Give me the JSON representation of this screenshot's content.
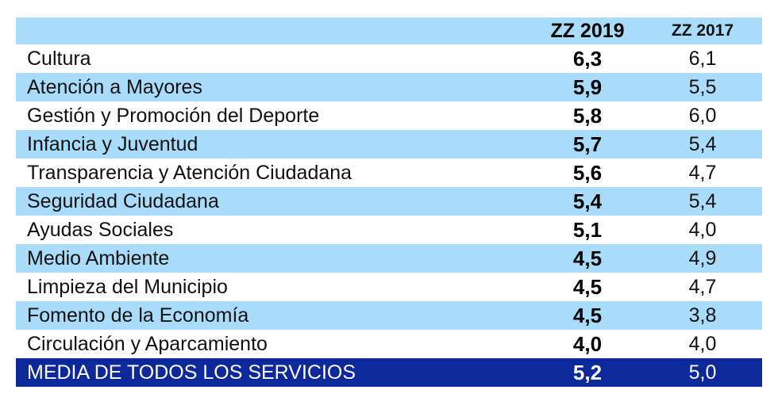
{
  "colors": {
    "stripe": "#a9dcfa",
    "dark": "#0d2898",
    "text": "#111111"
  },
  "header": {
    "label": "",
    "col_a": "ZZ 2019",
    "col_b": "ZZ 2017"
  },
  "chart_data": {
    "type": "table",
    "columns": [
      "ZZ 2019",
      "ZZ 2017"
    ],
    "rows": [
      {
        "label": "Cultura",
        "a": "6,3",
        "b": "6,1"
      },
      {
        "label": "Atención a Mayores",
        "a": "5,9",
        "b": "5,5"
      },
      {
        "label": "Gestión y Promoción del Deporte",
        "a": "5,8",
        "b": "6,0"
      },
      {
        "label": "Infancia y Juventud",
        "a": "5,7",
        "b": "5,4"
      },
      {
        "label": "Transparencia y Atención Ciudadana",
        "a": "5,6",
        "b": "4,7"
      },
      {
        "label": "Seguridad Ciudadana",
        "a": "5,4",
        "b": "5,4"
      },
      {
        "label": "Ayudas Sociales",
        "a": "5,1",
        "b": "4,0"
      },
      {
        "label": "Medio Ambiente",
        "a": "4,5",
        "b": "4,9"
      },
      {
        "label": "Limpieza del Municipio",
        "a": "4,5",
        "b": "4,7"
      },
      {
        "label": "Fomento de la Economía",
        "a": "4,5",
        "b": "3,8"
      },
      {
        "label": "Circulación y Aparcamiento",
        "a": "4,0",
        "b": "4,0"
      }
    ],
    "total": {
      "label": "MEDIA DE TODOS LOS SERVICIOS",
      "a": "5,2",
      "b": "5,0"
    }
  }
}
